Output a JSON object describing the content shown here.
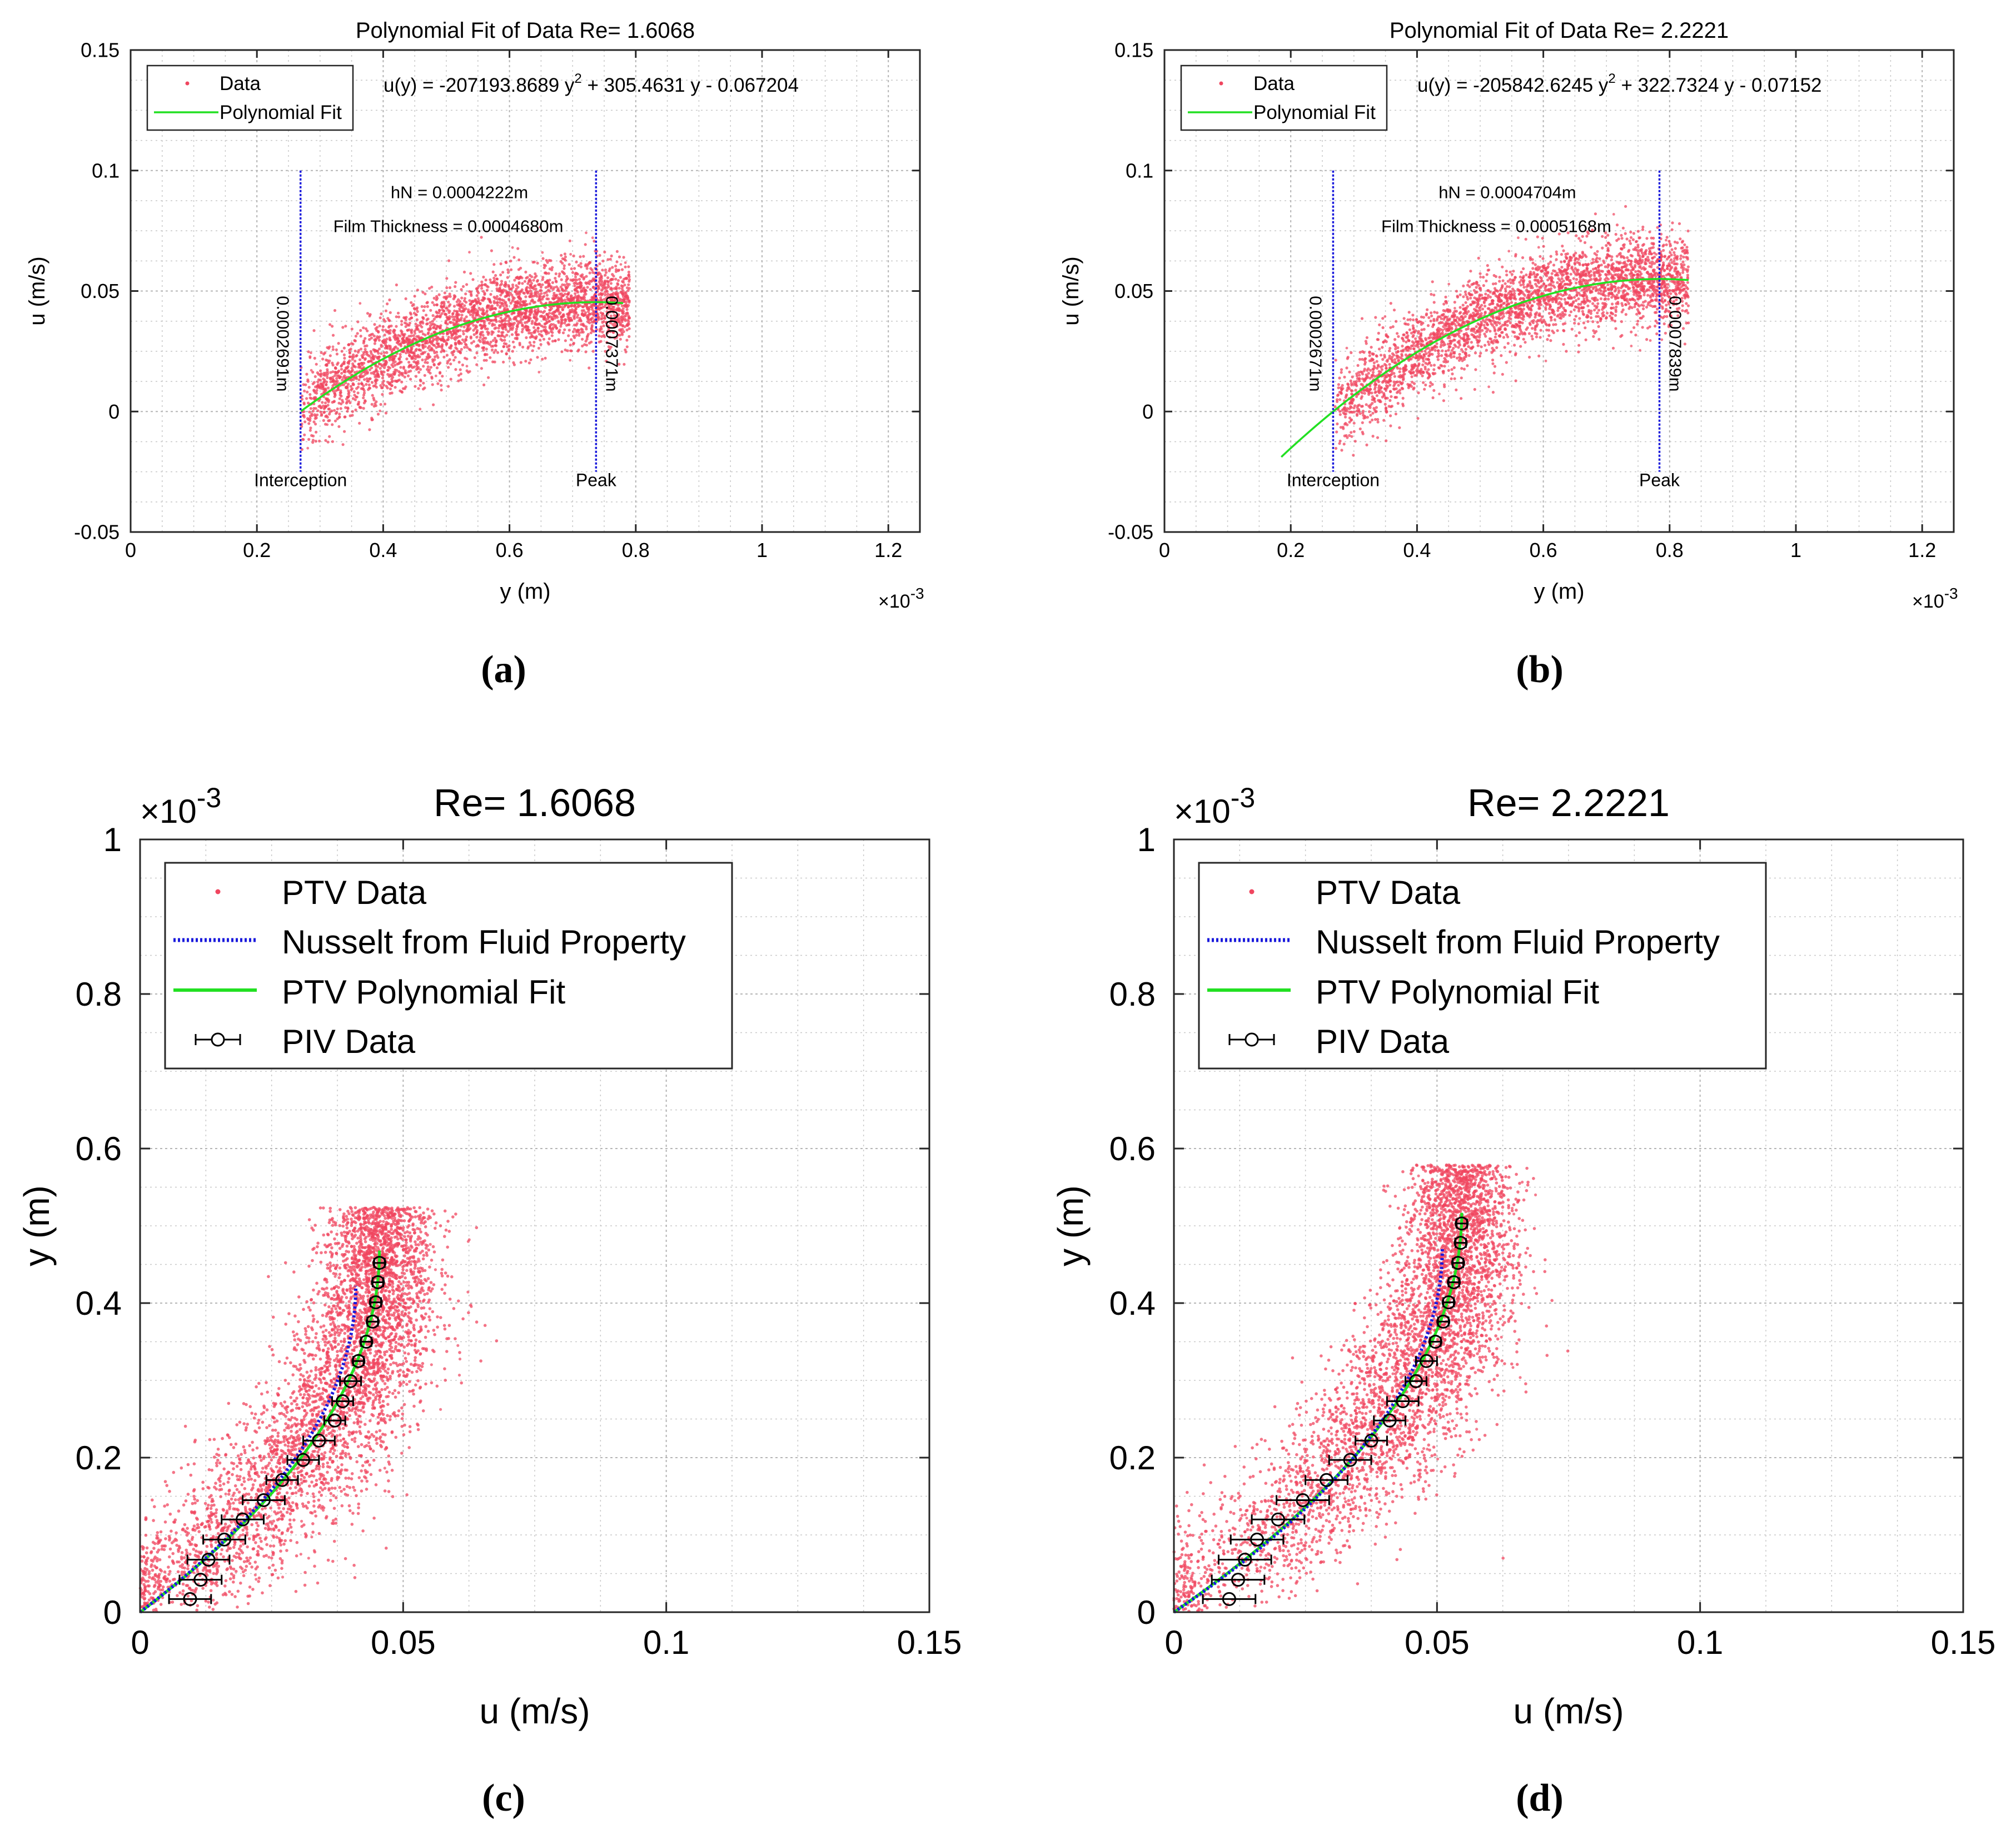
{
  "figure": {
    "captions": [
      "(a)",
      "(b)",
      "(c)",
      "(d)"
    ]
  },
  "colors": {
    "data": "#f0465f",
    "fit": "#22e022",
    "nusselt": "#1a1adc",
    "piv": "#000000",
    "vline": "#1a1adc",
    "grid": "#c8c8c8",
    "axis": "#262626"
  },
  "chart_data": [
    {
      "id": "a",
      "type": "scatter",
      "title": "Polynomial Fit of Data Re= 1.6068",
      "xlabel": "y (m)",
      "ylabel": "u (m/s)",
      "xlim": [
        0,
        1.25
      ],
      "ylim": [
        -0.05,
        0.15
      ],
      "x_multiplier_label": "×10",
      "x_multiplier_exp": "-3",
      "xticks": [
        0,
        0.2,
        0.4,
        0.6,
        0.8,
        1,
        1.2
      ],
      "xtick_labels": [
        "0",
        "0.2",
        "0.4",
        "0.6",
        "0.8",
        "1",
        "1.2"
      ],
      "yticks": [
        -0.05,
        0,
        0.05,
        0.1,
        0.15
      ],
      "ytick_labels": [
        "-0.05",
        "0",
        "0.05",
        "0.1",
        "0.15"
      ],
      "legend": [
        "Data",
        "Polynomial Fit"
      ],
      "equation": {
        "lhs": "u(y) =",
        "part1": "-207193.8689 y",
        "exp": "2",
        "part2": " + 305.4631 y - 0.067204"
      },
      "fit_coeffs": [
        -207193.8689,
        305.4631,
        -0.067204
      ],
      "fit_range": [
        0.27,
        0.78
      ],
      "scatter_range": [
        0.27,
        0.79
      ],
      "scatter_spread": 0.009,
      "annotations": [
        "hN = 0.0004222m",
        "Film Thickness = 0.0004680m"
      ],
      "vlines": [
        {
          "x": 0.2691,
          "value_label": "0.0002691m",
          "name_label": "Interception"
        },
        {
          "x": 0.7371,
          "value_label": "0.0007371m",
          "name_label": "Peak"
        }
      ]
    },
    {
      "id": "b",
      "type": "scatter",
      "title": "Polynomial Fit of Data Re= 2.2221",
      "xlabel": "y (m)",
      "ylabel": "u (m/s)",
      "xlim": [
        0,
        1.25
      ],
      "ylim": [
        -0.05,
        0.15
      ],
      "x_multiplier_label": "×10",
      "x_multiplier_exp": "-3",
      "xticks": [
        0,
        0.2,
        0.4,
        0.6,
        0.8,
        1,
        1.2
      ],
      "xtick_labels": [
        "0",
        "0.2",
        "0.4",
        "0.6",
        "0.8",
        "1",
        "1.2"
      ],
      "yticks": [
        -0.05,
        0,
        0.05,
        0.1,
        0.15
      ],
      "ytick_labels": [
        "-0.05",
        "0",
        "0.05",
        "0.1",
        "0.15"
      ],
      "legend": [
        "Data",
        "Polynomial Fit"
      ],
      "equation": {
        "lhs": "u(y) =",
        "part1": "-205842.6245 y",
        "exp": "2",
        "part2": " + 322.7324 y - 0.07152"
      },
      "fit_coeffs": [
        -205842.6245,
        322.7324,
        -0.07152
      ],
      "fit_range": [
        0.185,
        0.83
      ],
      "scatter_range": [
        0.27,
        0.83
      ],
      "scatter_spread": 0.009,
      "annotations": [
        "hN = 0.0004704m",
        "Film Thickness = 0.0005168m"
      ],
      "vlines": [
        {
          "x": 0.2671,
          "value_label": "0.0002671m",
          "name_label": "Interception"
        },
        {
          "x": 0.7839,
          "value_label": "0.0007839m",
          "name_label": "Peak"
        }
      ]
    },
    {
      "id": "c",
      "type": "scatter",
      "title": "Re= 1.6068",
      "xlabel": "u (m/s)",
      "ylabel": "y (m)",
      "xlim": [
        0,
        0.15
      ],
      "ylim": [
        0,
        1
      ],
      "y_multiplier_label": "×10",
      "y_multiplier_exp": "-3",
      "xticks": [
        0,
        0.05,
        0.1,
        0.15
      ],
      "xtick_labels": [
        "0",
        "0.05",
        "0.1",
        "0.15"
      ],
      "yticks": [
        0,
        0.2,
        0.4,
        0.6,
        0.8,
        1
      ],
      "ytick_labels": [
        "0",
        "0.2",
        "0.4",
        "0.6",
        "0.8",
        "1"
      ],
      "legend": [
        "PTV Data",
        "Nusselt from Fluid Property",
        "PTV Polynomial Fit",
        "PIV Data"
      ],
      "film_thickness": 0.468,
      "u_max": 0.0455,
      "nusselt": {
        "h": 0.4222,
        "u_max": 0.041
      },
      "piv": {
        "y": [
          0.017,
          0.042,
          0.068,
          0.094,
          0.12,
          0.145,
          0.171,
          0.197,
          0.222,
          0.248,
          0.273,
          0.299,
          0.325,
          0.35,
          0.376,
          0.401,
          0.427,
          0.452
        ],
        "u": [
          0.0095,
          0.0115,
          0.013,
          0.016,
          0.0195,
          0.0235,
          0.027,
          0.031,
          0.034,
          0.037,
          0.0385,
          0.04,
          0.0415,
          0.043,
          0.0442,
          0.0448,
          0.0452,
          0.0455
        ],
        "err": [
          0.004,
          0.004,
          0.004,
          0.004,
          0.004,
          0.004,
          0.003,
          0.003,
          0.003,
          0.002,
          0.002,
          0.002,
          0.001,
          0.001,
          0.001,
          0.001,
          0.001,
          0.001
        ]
      }
    },
    {
      "id": "d",
      "type": "scatter",
      "title": "Re= 2.2221",
      "xlabel": "u (m/s)",
      "ylabel": "y (m)",
      "xlim": [
        0,
        0.15
      ],
      "ylim": [
        0,
        1
      ],
      "y_multiplier_label": "×10",
      "y_multiplier_exp": "-3",
      "xticks": [
        0,
        0.05,
        0.1,
        0.15
      ],
      "xtick_labels": [
        "0",
        "0.05",
        "0.1",
        "0.15"
      ],
      "yticks": [
        0,
        0.2,
        0.4,
        0.6,
        0.8,
        1
      ],
      "ytick_labels": [
        "0",
        "0.2",
        "0.4",
        "0.6",
        "0.8",
        "1"
      ],
      "legend": [
        "PTV Data",
        "Nusselt from Fluid Property",
        "PTV Polynomial Fit",
        "PIV Data"
      ],
      "film_thickness": 0.5168,
      "u_max": 0.0547,
      "nusselt": {
        "h": 0.4704,
        "u_max": 0.051
      },
      "piv": {
        "y": [
          0.017,
          0.042,
          0.068,
          0.094,
          0.12,
          0.145,
          0.171,
          0.197,
          0.222,
          0.248,
          0.273,
          0.299,
          0.325,
          0.35,
          0.376,
          0.401,
          0.427,
          0.452,
          0.478,
          0.503
        ],
        "u": [
          0.0105,
          0.0122,
          0.0135,
          0.0158,
          0.0198,
          0.0245,
          0.029,
          0.0335,
          0.0375,
          0.041,
          0.0435,
          0.046,
          0.048,
          0.0497,
          0.0512,
          0.0522,
          0.0532,
          0.054,
          0.0545,
          0.0547
        ],
        "err": [
          0.005,
          0.005,
          0.005,
          0.005,
          0.005,
          0.005,
          0.004,
          0.004,
          0.003,
          0.003,
          0.003,
          0.002,
          0.002,
          0.001,
          0.001,
          0.001,
          0.001,
          0.001,
          0.001,
          0.001
        ]
      }
    }
  ]
}
